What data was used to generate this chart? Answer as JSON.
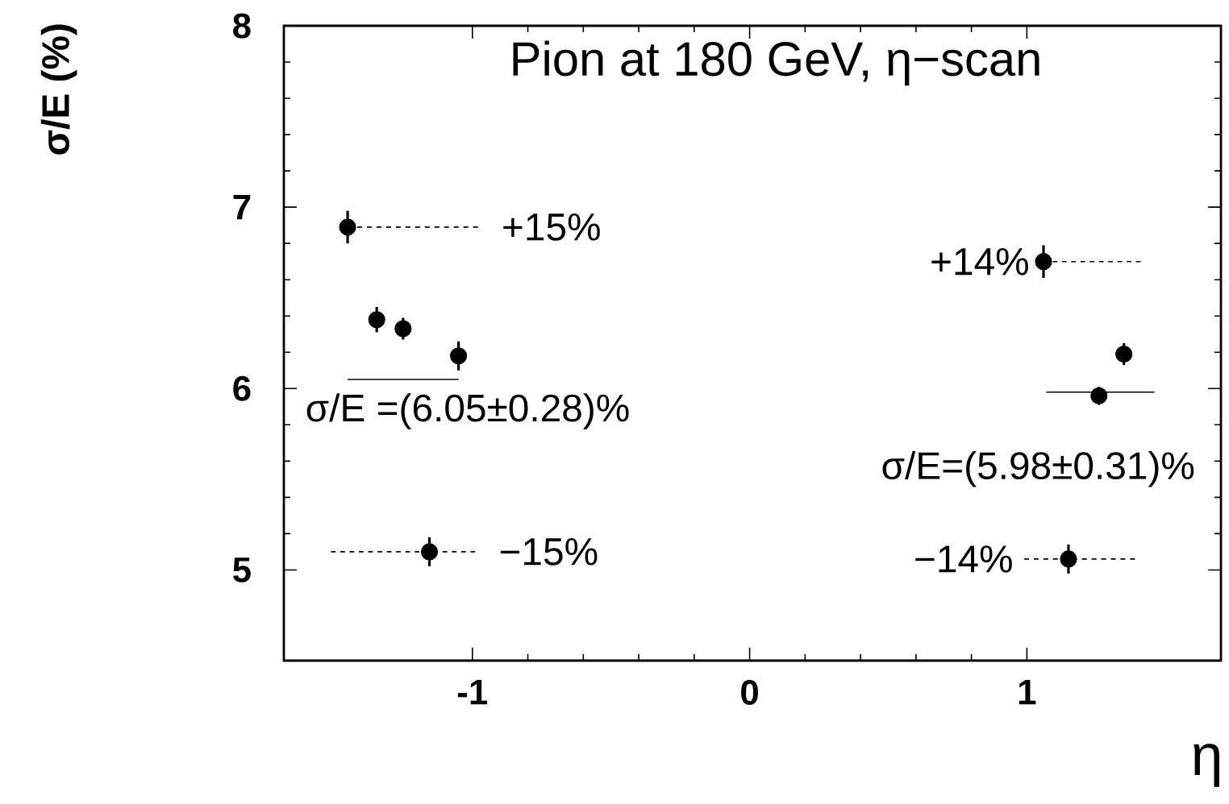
{
  "chart_data": {
    "type": "scatter",
    "title": "Pion at 180 GeV, η−scan",
    "xlabel": "η",
    "ylabel": "σ/E (%)",
    "xlim": [
      -1.68,
      1.7
    ],
    "ylim": [
      4.5,
      8
    ],
    "xticks": [
      -1,
      0,
      1
    ],
    "yticks": [
      5,
      6,
      7,
      8
    ],
    "grid": false,
    "series": [
      {
        "marker": "circle",
        "color": "#000000",
        "x": [
          -1.45,
          -1.345,
          -1.25,
          -1.05,
          -1.155,
          1.06,
          1.35,
          1.26,
          1.15
        ],
        "values": [
          6.89,
          6.38,
          6.33,
          6.18,
          5.1,
          6.7,
          6.19,
          5.96,
          5.06
        ],
        "errors": [
          0.09,
          0.07,
          0.06,
          0.08,
          0.08,
          0.09,
          0.06,
          0.05,
          0.08
        ]
      },
      {
        "type": "line",
        "marker": "none",
        "color": "#000000",
        "line_style": "solid",
        "x": [
          -1.45,
          -1.05
        ],
        "values": [
          6.05,
          6.05
        ]
      },
      {
        "type": "line",
        "marker": "none",
        "color": "#000000",
        "line_style": "solid",
        "x": [
          1.07,
          1.46
        ],
        "values": [
          5.98,
          5.98
        ]
      },
      {
        "type": "line",
        "marker": "none",
        "color": "#000000",
        "line_style": "dashed",
        "x": [
          -1.45,
          -0.98
        ],
        "values": [
          6.89,
          6.89
        ]
      },
      {
        "type": "line",
        "marker": "none",
        "color": "#000000",
        "line_style": "dashed",
        "x": [
          -1.51,
          -0.99
        ],
        "values": [
          5.1,
          5.1
        ]
      },
      {
        "type": "line",
        "marker": "none",
        "color": "#000000",
        "line_style": "dashed",
        "x": [
          1.06,
          1.41
        ],
        "values": [
          6.7,
          6.7
        ]
      },
      {
        "type": "line",
        "marker": "none",
        "color": "#000000",
        "line_style": "dashed",
        "x": [
          0.99,
          1.39
        ],
        "values": [
          5.06,
          5.06
        ]
      }
    ],
    "annotations": [
      {
        "text": "+15%",
        "x": -0.98,
        "y": 6.89
      },
      {
        "text": "−15%",
        "x": -0.99,
        "y": 5.1
      },
      {
        "text": "+14%",
        "x": 1.06,
        "y": 6.7
      },
      {
        "text": "−14%",
        "x": 0.99,
        "y": 5.06
      },
      {
        "text": "σ/E =(6.05±0.28)%",
        "x": -1.45,
        "y": 6.05
      },
      {
        "text": "σ/E=(5.98±0.31)%",
        "x": 1.46,
        "y": 5.98
      }
    ]
  }
}
